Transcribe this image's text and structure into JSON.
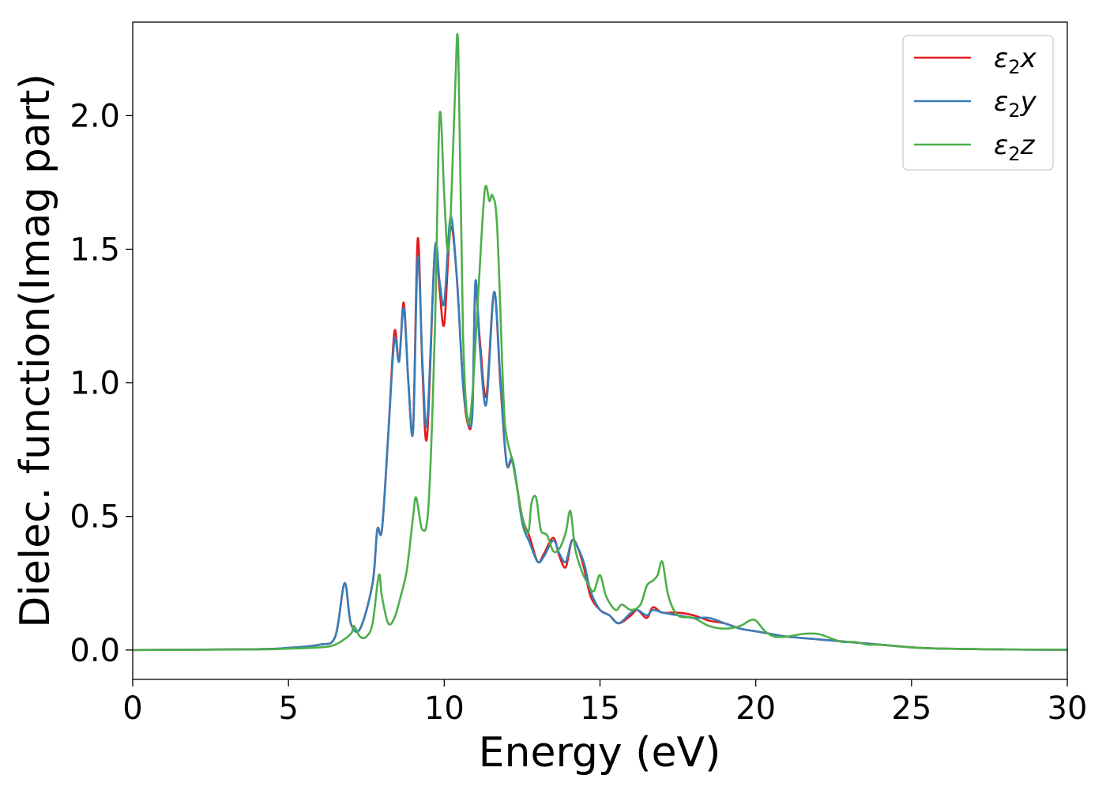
{
  "chart_data": {
    "type": "line",
    "title": "",
    "xlabel": "Energy (eV)",
    "ylabel": "Dielec. function(Imag part)",
    "xlim": [
      0,
      30
    ],
    "ylim": [
      -0.11,
      2.35
    ],
    "xticks": [
      0,
      5,
      10,
      15,
      20,
      25,
      30
    ],
    "xtick_labels": [
      "0",
      "5",
      "10",
      "15",
      "20",
      "25",
      "30"
    ],
    "yticks": [
      0.0,
      0.5,
      1.0,
      1.5,
      2.0
    ],
    "ytick_labels": [
      "0.0",
      "0.5",
      "1.0",
      "1.5",
      "2.0"
    ],
    "grid": false,
    "legend_position": "top-right",
    "series": [
      {
        "name": "ε2x",
        "legend_base": "ε",
        "legend_sub": "2",
        "legend_var": "x",
        "color": "#e41a1c",
        "x": [
          0,
          4,
          5,
          6,
          6.5,
          6.8,
          7.0,
          7.3,
          7.7,
          7.85,
          8.0,
          8.2,
          8.4,
          8.55,
          8.7,
          8.85,
          9.0,
          9.15,
          9.3,
          9.45,
          9.7,
          9.85,
          10.0,
          10.2,
          10.4,
          10.6,
          10.75,
          10.9,
          11.0,
          11.15,
          11.35,
          11.6,
          11.8,
          12.0,
          12.2,
          12.5,
          12.75,
          13.0,
          13.2,
          13.5,
          13.7,
          13.9,
          14.1,
          14.3,
          14.5,
          14.7,
          15.0,
          15.3,
          15.6,
          16.0,
          16.2,
          16.5,
          16.7,
          17.0,
          17.5,
          18.0,
          18.5,
          19.0,
          19.5,
          20.0,
          20.5,
          21.0,
          22.0,
          23.0,
          24.0,
          25.0,
          26.0,
          28.0,
          30.0
        ],
        "values": [
          0,
          0.003,
          0.008,
          0.02,
          0.05,
          0.25,
          0.1,
          0.08,
          0.25,
          0.45,
          0.45,
          0.8,
          1.19,
          1.08,
          1.3,
          1.0,
          0.83,
          1.54,
          1.05,
          0.8,
          1.5,
          1.35,
          1.22,
          1.58,
          1.4,
          1.0,
          0.85,
          0.88,
          1.35,
          1.15,
          0.95,
          1.34,
          1.0,
          0.7,
          0.7,
          0.5,
          0.42,
          0.33,
          0.36,
          0.42,
          0.35,
          0.31,
          0.41,
          0.38,
          0.3,
          0.2,
          0.15,
          0.13,
          0.1,
          0.13,
          0.15,
          0.12,
          0.16,
          0.14,
          0.14,
          0.13,
          0.11,
          0.1,
          0.08,
          0.07,
          0.06,
          0.05,
          0.04,
          0.03,
          0.02,
          0.01,
          0.005,
          0.002,
          0.001
        ]
      },
      {
        "name": "ε2y",
        "legend_base": "ε",
        "legend_sub": "2",
        "legend_var": "y",
        "color": "#377eb8",
        "x": [
          0,
          4,
          5,
          6,
          6.5,
          6.8,
          7.0,
          7.3,
          7.7,
          7.85,
          8.0,
          8.2,
          8.4,
          8.55,
          8.7,
          8.85,
          9.0,
          9.15,
          9.3,
          9.45,
          9.7,
          9.85,
          10.0,
          10.2,
          10.4,
          10.6,
          10.75,
          10.9,
          11.0,
          11.15,
          11.35,
          11.6,
          11.8,
          12.0,
          12.2,
          12.5,
          12.75,
          13.0,
          13.2,
          13.5,
          13.7,
          13.9,
          14.1,
          14.3,
          14.5,
          14.7,
          15.0,
          15.3,
          15.6,
          16.0,
          16.2,
          16.5,
          16.7,
          17.0,
          17.5,
          18.0,
          18.5,
          19.0,
          19.5,
          20.0,
          20.5,
          21.0,
          22.0,
          23.0,
          24.0,
          25.0,
          26.0,
          28.0,
          30.0
        ],
        "values": [
          0,
          0.003,
          0.008,
          0.02,
          0.05,
          0.25,
          0.1,
          0.08,
          0.25,
          0.45,
          0.45,
          0.8,
          1.16,
          1.08,
          1.28,
          1.0,
          0.82,
          1.47,
          1.08,
          0.85,
          1.5,
          1.38,
          1.3,
          1.62,
          1.4,
          1.0,
          0.87,
          0.88,
          1.38,
          1.12,
          0.92,
          1.34,
          1.02,
          0.7,
          0.71,
          0.48,
          0.4,
          0.33,
          0.35,
          0.41,
          0.36,
          0.33,
          0.41,
          0.38,
          0.32,
          0.22,
          0.15,
          0.13,
          0.1,
          0.14,
          0.15,
          0.13,
          0.15,
          0.14,
          0.13,
          0.12,
          0.12,
          0.1,
          0.08,
          0.07,
          0.06,
          0.05,
          0.04,
          0.03,
          0.02,
          0.01,
          0.005,
          0.002,
          0.001
        ]
      },
      {
        "name": "ε2z",
        "legend_base": "ε",
        "legend_sub": "2",
        "legend_var": "z",
        "color": "#4daf4a",
        "x": [
          0,
          4,
          5,
          6,
          6.5,
          7.0,
          7.1,
          7.3,
          7.5,
          7.7,
          7.9,
          8.0,
          8.2,
          8.4,
          8.6,
          8.8,
          9.0,
          9.1,
          9.3,
          9.5,
          9.7,
          9.85,
          10.0,
          10.1,
          10.2,
          10.35,
          10.45,
          10.6,
          10.75,
          10.9,
          11.1,
          11.3,
          11.45,
          11.55,
          11.7,
          11.9,
          12.0,
          12.2,
          12.5,
          12.7,
          12.8,
          12.95,
          13.1,
          13.3,
          13.5,
          13.7,
          13.9,
          14.05,
          14.2,
          14.4,
          14.6,
          14.8,
          15.0,
          15.2,
          15.5,
          15.7,
          16.0,
          16.3,
          16.5,
          16.7,
          16.85,
          17.0,
          17.2,
          17.5,
          18.0,
          18.5,
          19.0,
          19.5,
          19.8,
          20.0,
          20.3,
          20.6,
          21.0,
          21.5,
          22.0,
          22.5,
          22.8,
          23.2,
          23.6,
          24.0,
          25.0,
          26.0,
          28.0,
          30.0
        ],
        "values": [
          0,
          0.002,
          0.005,
          0.01,
          0.02,
          0.06,
          0.09,
          0.05,
          0.05,
          0.1,
          0.28,
          0.2,
          0.1,
          0.12,
          0.2,
          0.3,
          0.5,
          0.57,
          0.45,
          0.55,
          1.2,
          2.0,
          1.7,
          1.5,
          1.6,
          2.1,
          2.25,
          1.2,
          0.86,
          0.95,
          1.35,
          1.72,
          1.68,
          1.7,
          1.58,
          0.95,
          0.8,
          0.7,
          0.5,
          0.44,
          0.55,
          0.57,
          0.45,
          0.43,
          0.37,
          0.38,
          0.44,
          0.52,
          0.38,
          0.3,
          0.25,
          0.22,
          0.28,
          0.2,
          0.15,
          0.17,
          0.15,
          0.17,
          0.24,
          0.26,
          0.28,
          0.33,
          0.2,
          0.13,
          0.12,
          0.09,
          0.08,
          0.09,
          0.11,
          0.11,
          0.07,
          0.05,
          0.05,
          0.06,
          0.06,
          0.04,
          0.03,
          0.03,
          0.02,
          0.02,
          0.01,
          0.005,
          0.002,
          0.001
        ]
      }
    ]
  }
}
